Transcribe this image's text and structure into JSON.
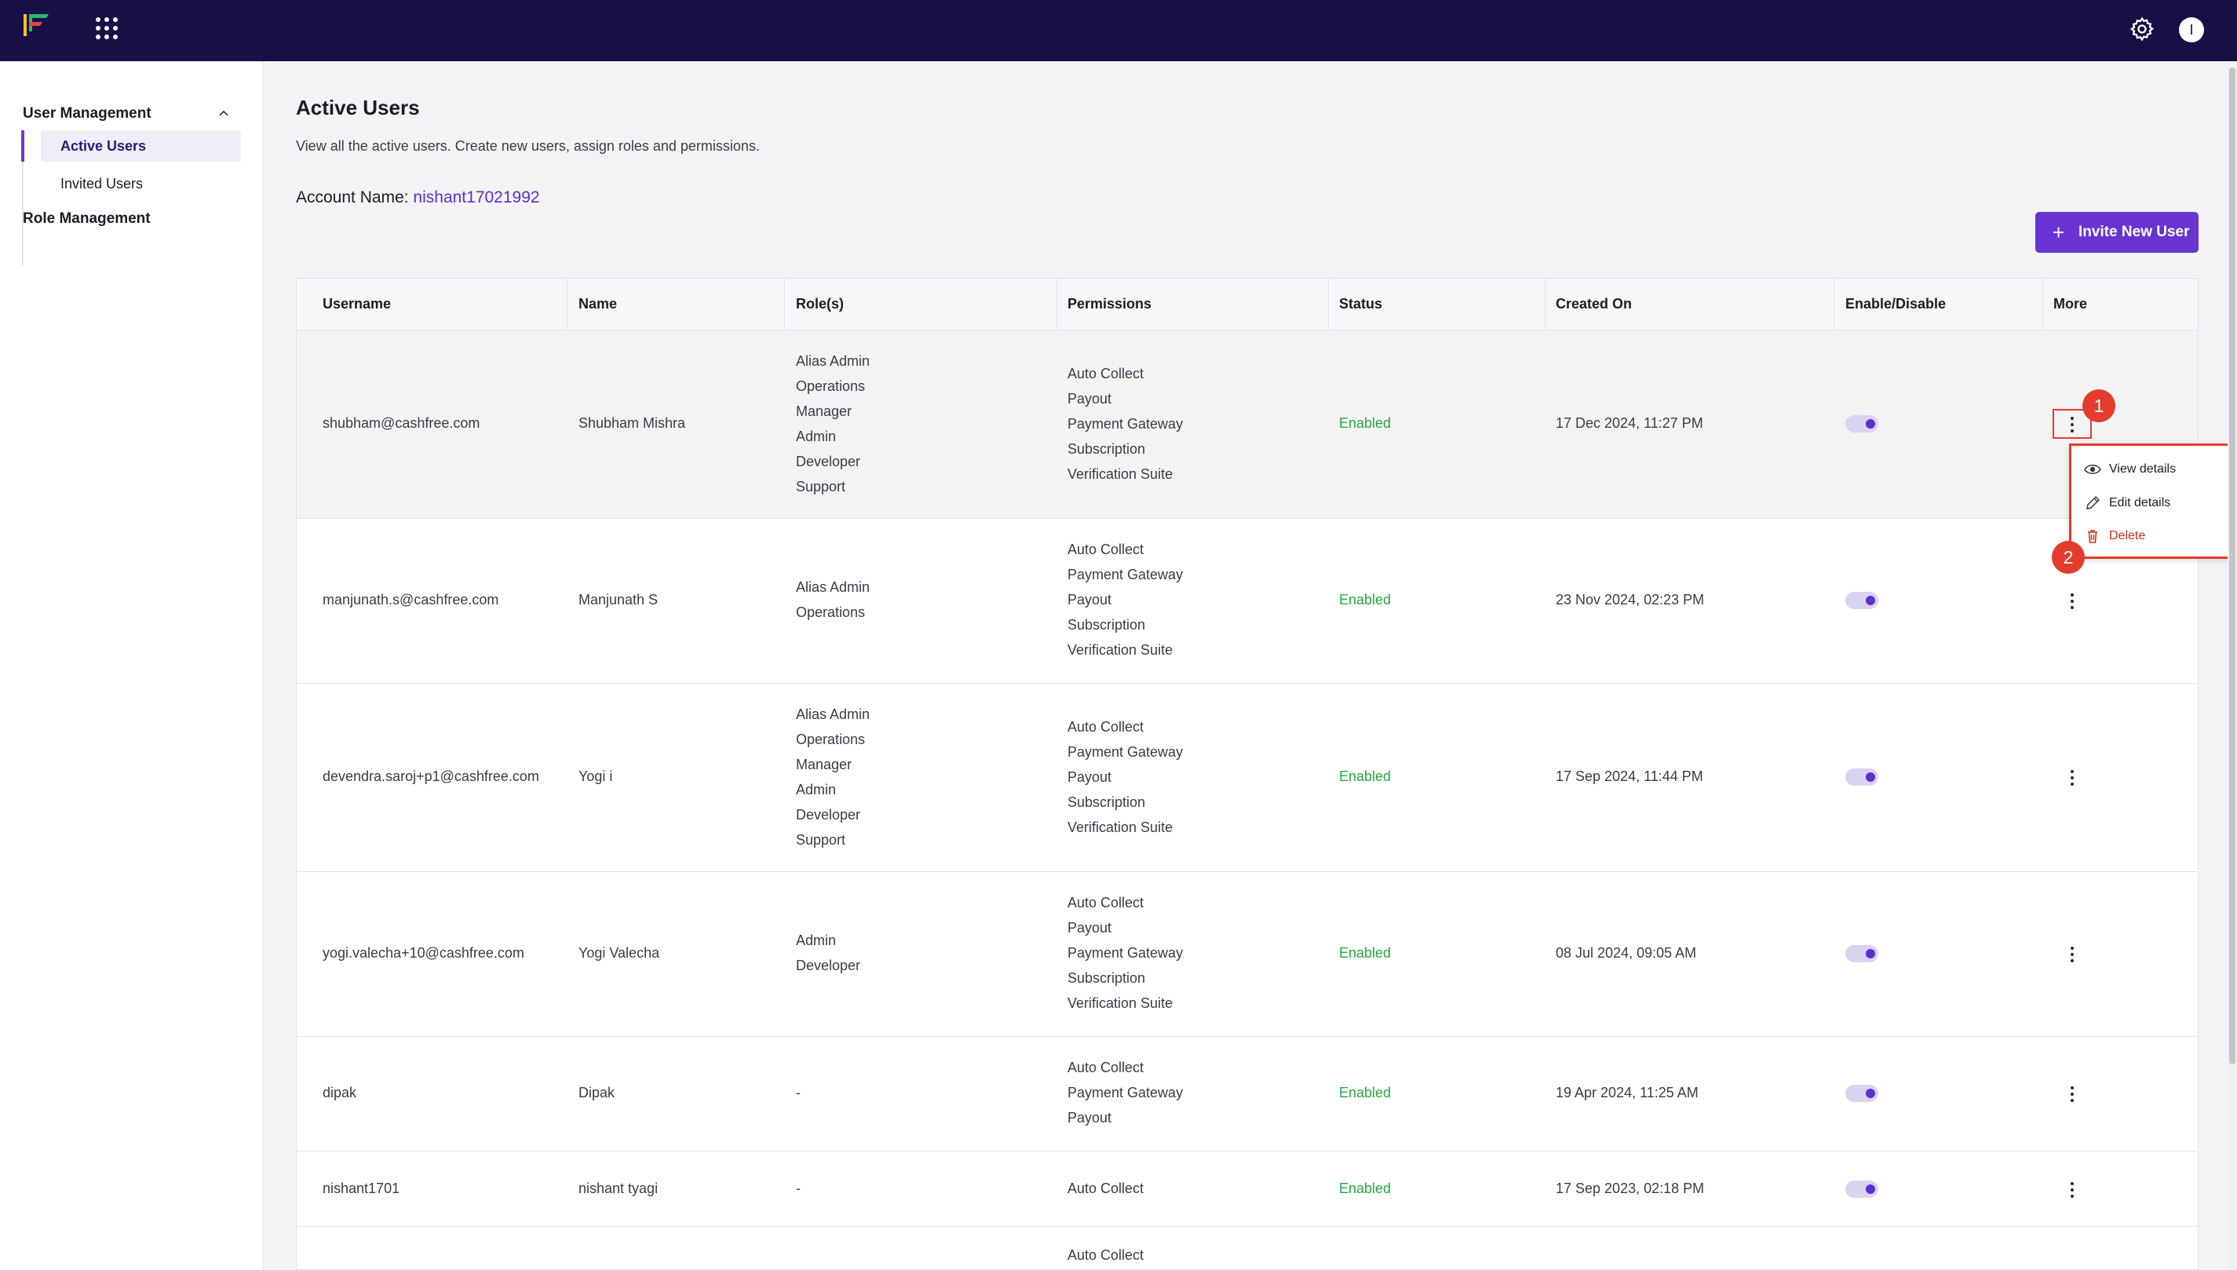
{
  "topbar": {
    "avatar_initial": "I",
    "brand_color": "#190e46"
  },
  "sidebar": {
    "section_label": "User Management",
    "items": [
      {
        "label": "Active Users",
        "active": true
      },
      {
        "label": "Invited Users",
        "active": false
      }
    ],
    "role_management_label": "Role Management"
  },
  "main": {
    "title": "Active Users",
    "subtitle": "View all the active users. Create new users, assign roles and permissions.",
    "account_label": "Account Name:",
    "account_value": "nishant17021992",
    "invite_label": "Invite New User"
  },
  "table": {
    "headers": [
      "Username",
      "Name",
      "Role(s)",
      "Permissions",
      "Status",
      "Created On",
      "Enable/Disable",
      "More"
    ],
    "rows": [
      {
        "username": "shubham@cashfree.com",
        "name": "Shubham Mishra",
        "roles": [
          "Alias Admin",
          "Operations",
          "Manager",
          "Admin",
          "Developer",
          "Support"
        ],
        "permissions": [
          "Auto Collect",
          "Payout",
          "Payment Gateway",
          "Subscription",
          "Verification Suite"
        ],
        "status": "Enabled",
        "created": "17 Dec 2024, 11:27 PM",
        "enabled": true
      },
      {
        "username": "manjunath.s@cashfree.com",
        "name": "Manjunath S",
        "roles": [
          "Alias Admin",
          "Operations"
        ],
        "permissions": [
          "Auto Collect",
          "Payment Gateway",
          "Payout",
          "Subscription",
          "Verification Suite"
        ],
        "status": "Enabled",
        "created": "23 Nov 2024, 02:23 PM",
        "enabled": true
      },
      {
        "username": "devendra.saroj+p1@cashfree.com",
        "name": "Yogi i",
        "roles": [
          "Alias Admin",
          "Operations",
          "Manager",
          "Admin",
          "Developer",
          "Support"
        ],
        "permissions": [
          "Auto Collect",
          "Payment Gateway",
          "Payout",
          "Subscription",
          "Verification Suite"
        ],
        "status": "Enabled",
        "created": "17 Sep 2024, 11:44 PM",
        "enabled": true
      },
      {
        "username": "yogi.valecha+10@cashfree.com",
        "name": "Yogi Valecha",
        "roles": [
          "Admin",
          "Developer"
        ],
        "permissions": [
          "Auto Collect",
          "Payout",
          "Payment Gateway",
          "Subscription",
          "Verification Suite"
        ],
        "status": "Enabled",
        "created": "08 Jul 2024, 09:05 AM",
        "enabled": true
      },
      {
        "username": "dipak",
        "name": "Dipak",
        "roles": [
          "-"
        ],
        "permissions": [
          "Auto Collect",
          "Payment Gateway",
          "Payout"
        ],
        "status": "Enabled",
        "created": "19 Apr 2024, 11:25 AM",
        "enabled": true
      },
      {
        "username": "nishant1701",
        "name": "nishant tyagi",
        "roles": [
          "-"
        ],
        "permissions": [
          "Auto Collect"
        ],
        "status": "Enabled",
        "created": "17 Sep 2023, 02:18 PM",
        "enabled": true
      },
      {
        "username": "",
        "name": "",
        "roles": [],
        "permissions": [
          "Auto Collect"
        ],
        "status": "",
        "created": "",
        "enabled": null
      }
    ]
  },
  "row_menu": {
    "items": [
      {
        "label": "View details",
        "icon": "eye-icon"
      },
      {
        "label": "Edit details",
        "icon": "pencil-icon"
      },
      {
        "label": "Delete",
        "icon": "trash-icon"
      }
    ]
  },
  "callouts": [
    "1",
    "2"
  ],
  "colors": {
    "accent": "#6933d3",
    "enabled": "#26a641",
    "danger": "#d32c1f",
    "highlight": "#e53b2c"
  }
}
